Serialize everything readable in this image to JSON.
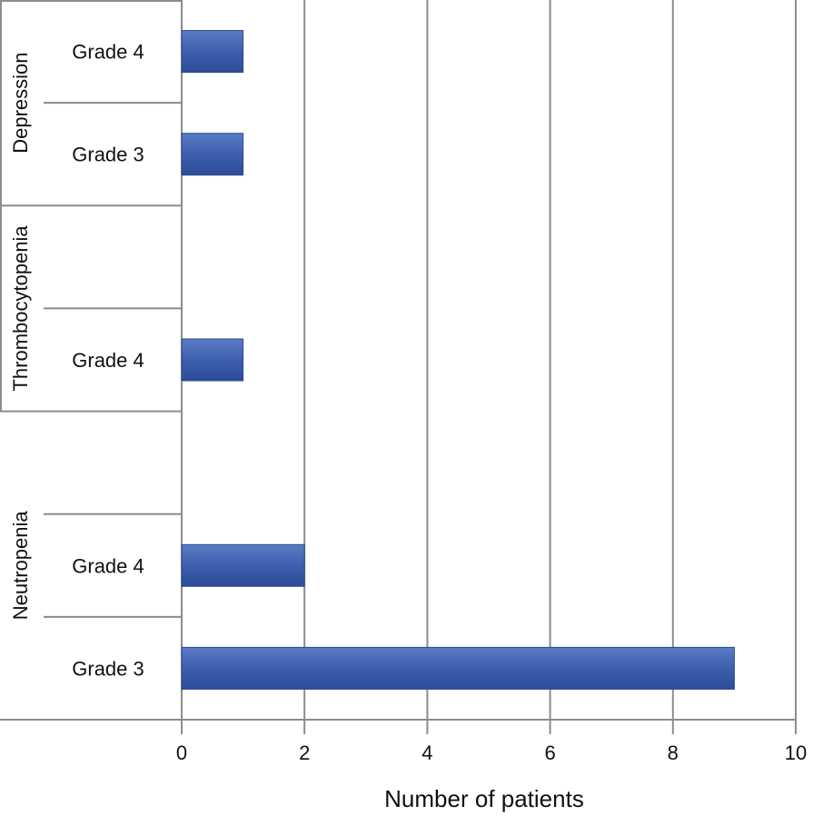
{
  "chart_data": {
    "type": "bar",
    "orientation": "horizontal",
    "xlabel": "Number of patients",
    "xlim": [
      0,
      10
    ],
    "xticks": [
      0,
      2,
      4,
      6,
      8,
      10
    ],
    "grid": true,
    "bar_color": "#3b5ca6",
    "groups": [
      {
        "name": "Depression",
        "rows": [
          {
            "label": "Grade 4",
            "value": 1
          },
          {
            "label": "Grade 3",
            "value": 1
          }
        ]
      },
      {
        "name": "Thrombocytopenia",
        "rows": [
          {
            "label": "",
            "value": null
          },
          {
            "label": "Grade 4",
            "value": 1
          }
        ]
      },
      {
        "name": "Neutropenia",
        "rows": [
          {
            "label": "",
            "value": null
          },
          {
            "label": "Grade 4",
            "value": 2
          },
          {
            "label": "Grade 3",
            "value": 9
          }
        ]
      }
    ]
  }
}
